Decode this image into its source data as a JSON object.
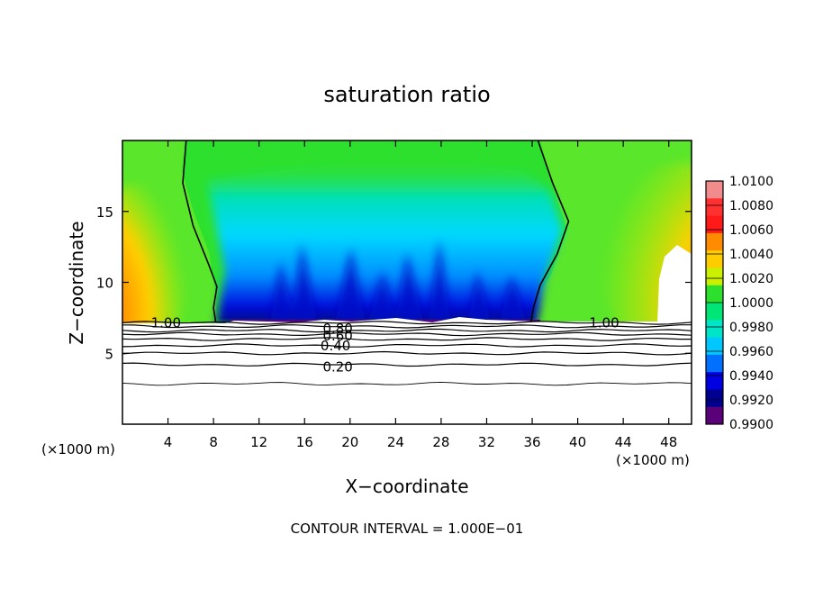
{
  "chart_data": {
    "type": "heatmap",
    "title": "saturation ratio",
    "xlabel": "X−coordinate",
    "ylabel": "Z−coordinate",
    "x_unit_left": "(×1000 m)",
    "x_unit_right": "(×1000 m)",
    "xlim": [
      0,
      50
    ],
    "ylim": [
      0,
      20
    ],
    "x_ticks": [
      4,
      8,
      12,
      16,
      20,
      24,
      28,
      32,
      36,
      40,
      44,
      48
    ],
    "y_ticks": [
      5,
      10,
      15
    ],
    "footer": "CONTOUR INTERVAL = 1.000E−01",
    "colorbar": {
      "levels": [
        "1.0100",
        "1.0080",
        "1.0060",
        "1.0040",
        "1.0020",
        "1.0000",
        "0.9980",
        "0.9960",
        "0.9940",
        "0.9920",
        "0.9900"
      ],
      "colors": [
        "#f08c8c",
        "#ff3030",
        "#ff1a1a",
        "#ff8c00",
        "#ffcc00",
        "#c8f000",
        "#2ee02e",
        "#00e676",
        "#00e5c8",
        "#00c8ff",
        "#0070ff",
        "#0000e0",
        "#000090",
        "#5a0078"
      ]
    },
    "contour_labels": [
      {
        "text": "1.00",
        "x": 2.5,
        "z": 7.2
      },
      {
        "text": "1.00",
        "x": 41.0,
        "z": 7.2
      },
      {
        "text": "0.80",
        "x": 17.6,
        "z": 6.8
      },
      {
        "text": "0.60",
        "x": 17.6,
        "z": 6.3
      },
      {
        "text": "0.40",
        "x": 17.4,
        "z": 5.6
      },
      {
        "text": "0.20",
        "x": 17.6,
        "z": 4.1
      }
    ],
    "contour_lines_z": [
      7.15,
      6.9,
      6.6,
      6.35,
      6.0,
      5.55,
      5.0,
      4.2,
      2.85
    ],
    "contour_1_00_left": [
      [
        5.6,
        20
      ],
      [
        5.3,
        17
      ],
      [
        6.2,
        14
      ],
      [
        7.6,
        11.2
      ],
      [
        8.3,
        9.7
      ],
      [
        8.0,
        8.2
      ],
      [
        8.2,
        7.2
      ]
    ],
    "contour_1_00_right": [
      [
        36.5,
        20
      ],
      [
        37.8,
        17
      ],
      [
        39.2,
        14.3
      ],
      [
        38.2,
        12
      ],
      [
        36.7,
        9.8
      ],
      [
        36.1,
        8.2
      ],
      [
        35.9,
        7.2
      ]
    ]
  }
}
